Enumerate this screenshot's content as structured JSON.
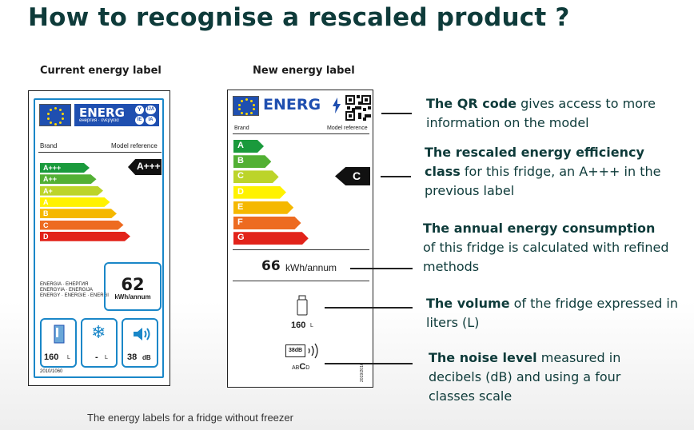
{
  "title": "How to recognise a rescaled product ?",
  "current": {
    "heading": "Current energy label",
    "energ": "ENERG",
    "energ_sub": "енергия · ενεργεια",
    "badges": [
      "Y",
      "IJA",
      "IE",
      "IA"
    ],
    "brand": "Brand",
    "model": "Model reference",
    "classes": [
      "A+++",
      "A++",
      "A+",
      "A",
      "B",
      "C",
      "D"
    ],
    "class_colors": [
      "#1a9a3c",
      "#52b034",
      "#bcd42a",
      "#fff200",
      "#f5b800",
      "#ed6b21",
      "#e2231a"
    ],
    "rating": "A+++",
    "energia_lines": [
      "ENERGIA · ЕНЕРГИЯ",
      "ENERGYIA · ENERGIJA",
      "ENERGY · ENERGIE · ENERGI"
    ],
    "kwh_value": "62",
    "kwh_unit": "kWh/annum",
    "volume": "160",
    "volume_unit": "L",
    "freezer": "-",
    "freezer_unit": "L",
    "noise": "38",
    "noise_unit": "dB",
    "regulation": "2010/1060"
  },
  "new": {
    "heading": "New energy label",
    "energ": "ENERG",
    "brand": "Brand",
    "model": "Model reference",
    "classes": [
      "A",
      "B",
      "C",
      "D",
      "E",
      "F",
      "G"
    ],
    "class_colors": [
      "#1a9a3c",
      "#52b034",
      "#bcd42a",
      "#fff200",
      "#f5b800",
      "#ed6b21",
      "#e2231a"
    ],
    "rating": "C",
    "kwh_value": "66",
    "kwh_unit": "kWh/annum",
    "volume": "160",
    "volume_unit": "L",
    "noise_icon_text": "38dB",
    "noise_scale": [
      "A",
      "B",
      "C",
      "D"
    ],
    "regulation": "2019/2016"
  },
  "callouts": {
    "qr_bold": "The QR code",
    "qr_rest": " gives access to more information on the model",
    "class_bold": "The rescaled energy efficiency class",
    "class_rest": " for this fridge, an A+++ in the previous label",
    "annual_bold": "The annual energy consumption",
    "annual_rest": " of this fridge is calculated with refined methods",
    "volume_bold": "The volume",
    "volume_rest": " of the fridge expressed in liters (L)",
    "noise_bold": "The noise level",
    "noise_rest": " measured in decibels (dB) and using a four classes scale"
  },
  "caption": "The energy labels for a fridge without freezer"
}
